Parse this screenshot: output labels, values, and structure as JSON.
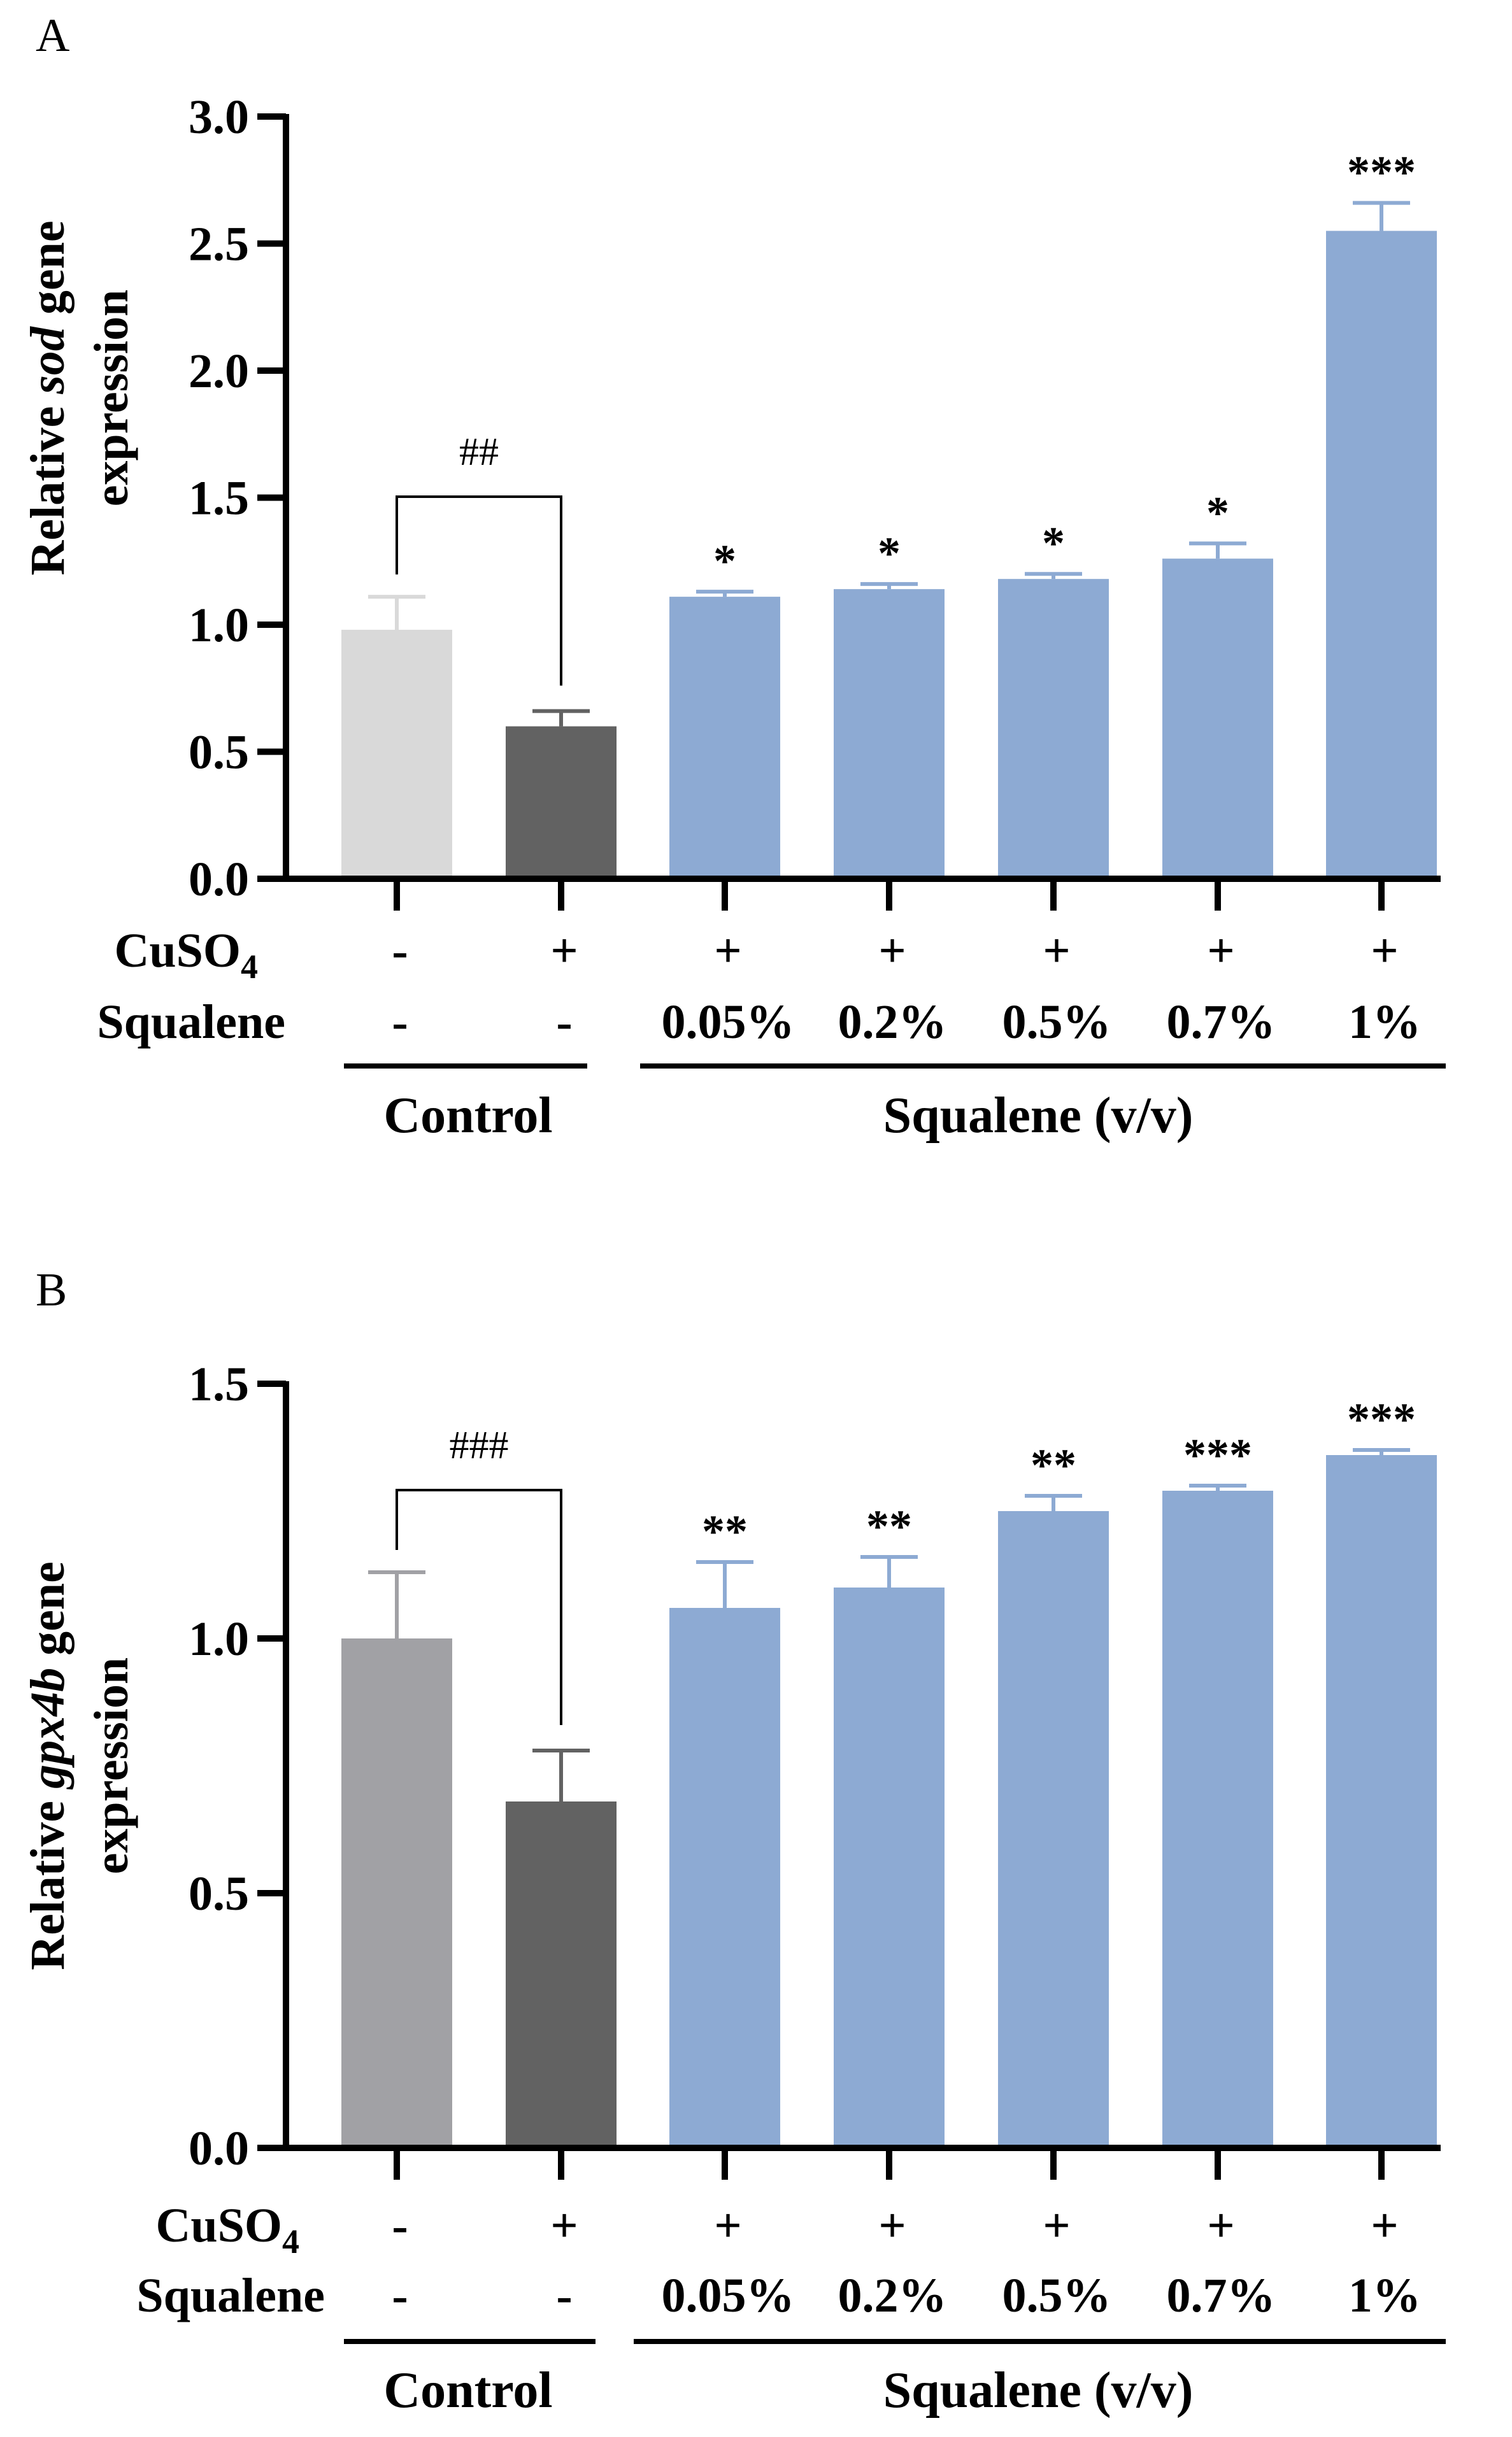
{
  "chart_data": [
    {
      "panel": "A",
      "type": "bar",
      "ylabel_pre": "Relative ",
      "ylabel_gene": "sod",
      "ylabel_post": " gene",
      "ylabel_line2": "expression",
      "ylim": [
        0,
        3.0
      ],
      "yticks": [
        "0.0",
        "0.5",
        "1.0",
        "1.5",
        "2.0",
        "2.5",
        "3.0"
      ],
      "categories": [
        "Control -",
        "Control +",
        "0.05%",
        "0.2%",
        "0.5%",
        "0.7%",
        "1%"
      ],
      "values": [
        0.98,
        0.6,
        1.11,
        1.14,
        1.18,
        1.26,
        2.55
      ],
      "errors": [
        0.13,
        0.06,
        0.02,
        0.02,
        0.02,
        0.06,
        0.11
      ],
      "colors": [
        "#d9d9d9",
        "#626262",
        "#8daad3",
        "#8daad3",
        "#8daad3",
        "#8daad3",
        "#8daad3"
      ],
      "significance": [
        "",
        "",
        "*",
        "*",
        "*",
        "*",
        "***"
      ],
      "bracket_label": "##",
      "cuso4": [
        "-",
        "+",
        "+",
        "+",
        "+",
        "+",
        "+"
      ],
      "squalene": [
        "-",
        "-",
        "0.05%",
        "0.2%",
        "0.5%",
        "0.7%",
        "1%"
      ],
      "row_label_cuso4": "CuSO",
      "row_label_cuso4_sub": "4",
      "row_label_squalene": "Squalene",
      "group_control": "Control",
      "group_squalene": "Squalene (v/v)"
    },
    {
      "panel": "B",
      "type": "bar",
      "ylabel_pre": "Relative ",
      "ylabel_gene": "gpx4b",
      "ylabel_post": " gene",
      "ylabel_line2": "expression",
      "ylim": [
        0,
        1.5
      ],
      "yticks": [
        "0.0",
        "0.5",
        "1.0",
        "1.5"
      ],
      "categories": [
        "Control -",
        "Control +",
        "0.05%",
        "0.2%",
        "0.5%",
        "0.7%",
        "1%"
      ],
      "values": [
        1.0,
        0.68,
        1.06,
        1.1,
        1.25,
        1.29,
        1.36
      ],
      "errors": [
        0.13,
        0.1,
        0.09,
        0.06,
        0.03,
        0.01,
        0.01
      ],
      "colors": [
        "#a1a1a5",
        "#626262",
        "#8daad3",
        "#8daad3",
        "#8daad3",
        "#8daad3",
        "#8daad3"
      ],
      "significance": [
        "",
        "",
        "**",
        "**",
        "**",
        "***",
        "***"
      ],
      "bracket_label": "###",
      "cuso4": [
        "-",
        "+",
        "+",
        "+",
        "+",
        "+",
        "+"
      ],
      "squalene": [
        "-",
        "-",
        "0.05%",
        "0.2%",
        "0.5%",
        "0.7%",
        "1%"
      ],
      "row_label_cuso4": "CuSO",
      "row_label_cuso4_sub": "4",
      "row_label_squalene": "Squalene",
      "group_control": "Control",
      "group_squalene": "Squalene (v/v)"
    }
  ]
}
